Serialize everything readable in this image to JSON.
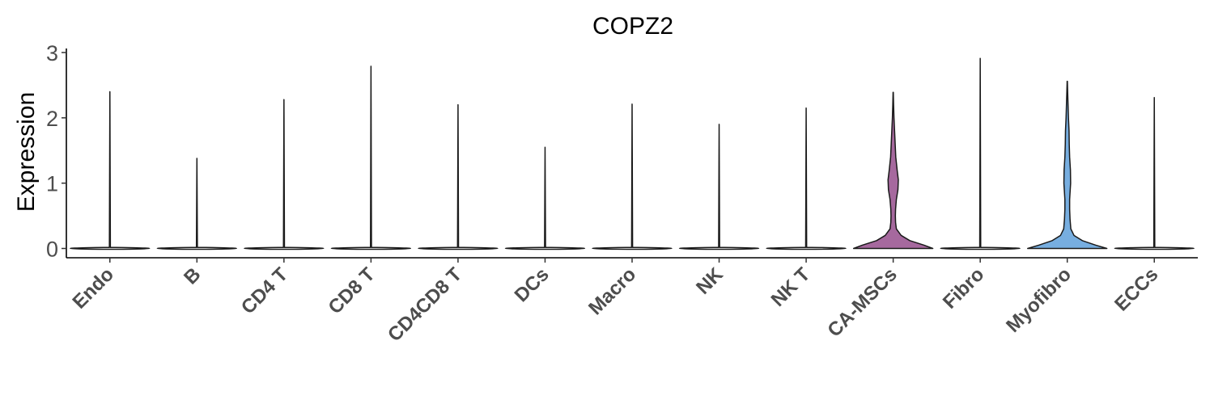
{
  "chart_data": {
    "type": "violin",
    "title": "COPZ2",
    "xlabel": "",
    "ylabel": "Expression",
    "ylim": [
      0,
      3
    ],
    "yticks": [
      0,
      1,
      2,
      3
    ],
    "grid": false,
    "legend": "none",
    "categories": [
      "Endo",
      "B",
      "CD4 T",
      "CD8 T",
      "CD4CD8 T",
      "DCs",
      "Macro",
      "NK",
      "NK T",
      "CA-MSCs",
      "Fibro",
      "Myofibro",
      "ECCs"
    ],
    "max_values": [
      2.4,
      1.38,
      2.28,
      2.79,
      2.2,
      1.55,
      2.21,
      1.9,
      2.15,
      2.39,
      2.91,
      2.56,
      2.31
    ],
    "fill_colors": [
      "#ffffff",
      "#ffffff",
      "#ffffff",
      "#ffffff",
      "#ffffff",
      "#ffffff",
      "#ffffff",
      "#ffffff",
      "#ffffff",
      "#a6699e",
      "#ffffff",
      "#77aee0",
      "#ffffff"
    ],
    "density_profiles": {
      "CA-MSCs": [
        [
          0,
          1.0
        ],
        [
          0.05,
          0.78
        ],
        [
          0.12,
          0.42
        ],
        [
          0.2,
          0.2
        ],
        [
          0.3,
          0.08
        ],
        [
          0.4,
          0.06
        ],
        [
          0.5,
          0.055
        ],
        [
          0.6,
          0.06
        ],
        [
          0.75,
          0.08
        ],
        [
          0.9,
          0.12
        ],
        [
          1.05,
          0.13
        ],
        [
          1.2,
          0.1
        ],
        [
          1.4,
          0.065
        ],
        [
          1.6,
          0.05
        ],
        [
          1.8,
          0.035
        ],
        [
          2.0,
          0.02
        ],
        [
          2.2,
          0.01
        ],
        [
          2.39,
          0.003
        ]
      ],
      "Myofibro": [
        [
          0,
          1.0
        ],
        [
          0.05,
          0.72
        ],
        [
          0.12,
          0.38
        ],
        [
          0.2,
          0.17
        ],
        [
          0.3,
          0.09
        ],
        [
          0.45,
          0.07
        ],
        [
          0.6,
          0.06
        ],
        [
          0.75,
          0.06
        ],
        [
          0.9,
          0.075
        ],
        [
          1.0,
          0.085
        ],
        [
          1.2,
          0.08
        ],
        [
          1.4,
          0.06
        ],
        [
          1.6,
          0.05
        ],
        [
          1.8,
          0.045
        ],
        [
          2.0,
          0.03
        ],
        [
          2.2,
          0.02
        ],
        [
          2.4,
          0.01
        ],
        [
          2.56,
          0.003
        ]
      ]
    }
  }
}
